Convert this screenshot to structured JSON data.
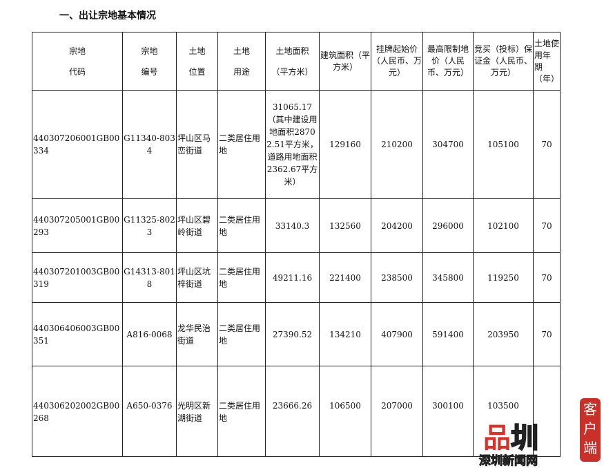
{
  "section_title": "一、出让宗地基本情况",
  "table": {
    "headers": [
      [
        "宗地",
        "代码"
      ],
      [
        "宗地",
        "编号"
      ],
      [
        "土地",
        "位置"
      ],
      [
        "土地",
        "用途"
      ],
      [
        "土地面积",
        "（平方米）"
      ],
      "建筑面积（平方米）",
      "挂牌起始价（人民币、万元）",
      "最高限制地价（人民币、万元）",
      "竞买（投标）保证金（人民币、万元）",
      "土地使用年　期（年）"
    ],
    "rows": [
      [
        "440307206001GB00334",
        "G11340-8034",
        "坪山区马峦街道",
        "二类居住用地",
        "31065.17（其中建设用地面积28702.51平方米，道路用地面积2362.67平方米）",
        "129160",
        "210200",
        "304700",
        "105100",
        "70"
      ],
      [
        "440307205001GB00293",
        "G11325-8023",
        "坪山区碧岭街道",
        "二类居住用地",
        "33140.3",
        "132560",
        "204200",
        "296000",
        "102100",
        "70"
      ],
      [
        "440307201003GB00319",
        "G14313-8018",
        "坪山区坑梓街道",
        "二类居住用地",
        "49211.16",
        "221400",
        "238500",
        "345800",
        "119250",
        "70"
      ],
      [
        "440306406003GB00351",
        "A816-0068",
        "龙华民治街道",
        "二类居住用地",
        "27390.52",
        "134210",
        "407900",
        "591400",
        "203950",
        "70"
      ],
      [
        "440306202002GB00268",
        "A650-0376",
        "光明区新湖街道",
        "二类居住用地",
        "23666.26",
        "106500",
        "207000",
        "300100",
        "103500",
        ""
      ]
    ]
  },
  "watermark": {
    "logo_text": "品圳",
    "sub": "深圳新闻网",
    "badge": "客户端",
    "color": "#d6312a"
  }
}
